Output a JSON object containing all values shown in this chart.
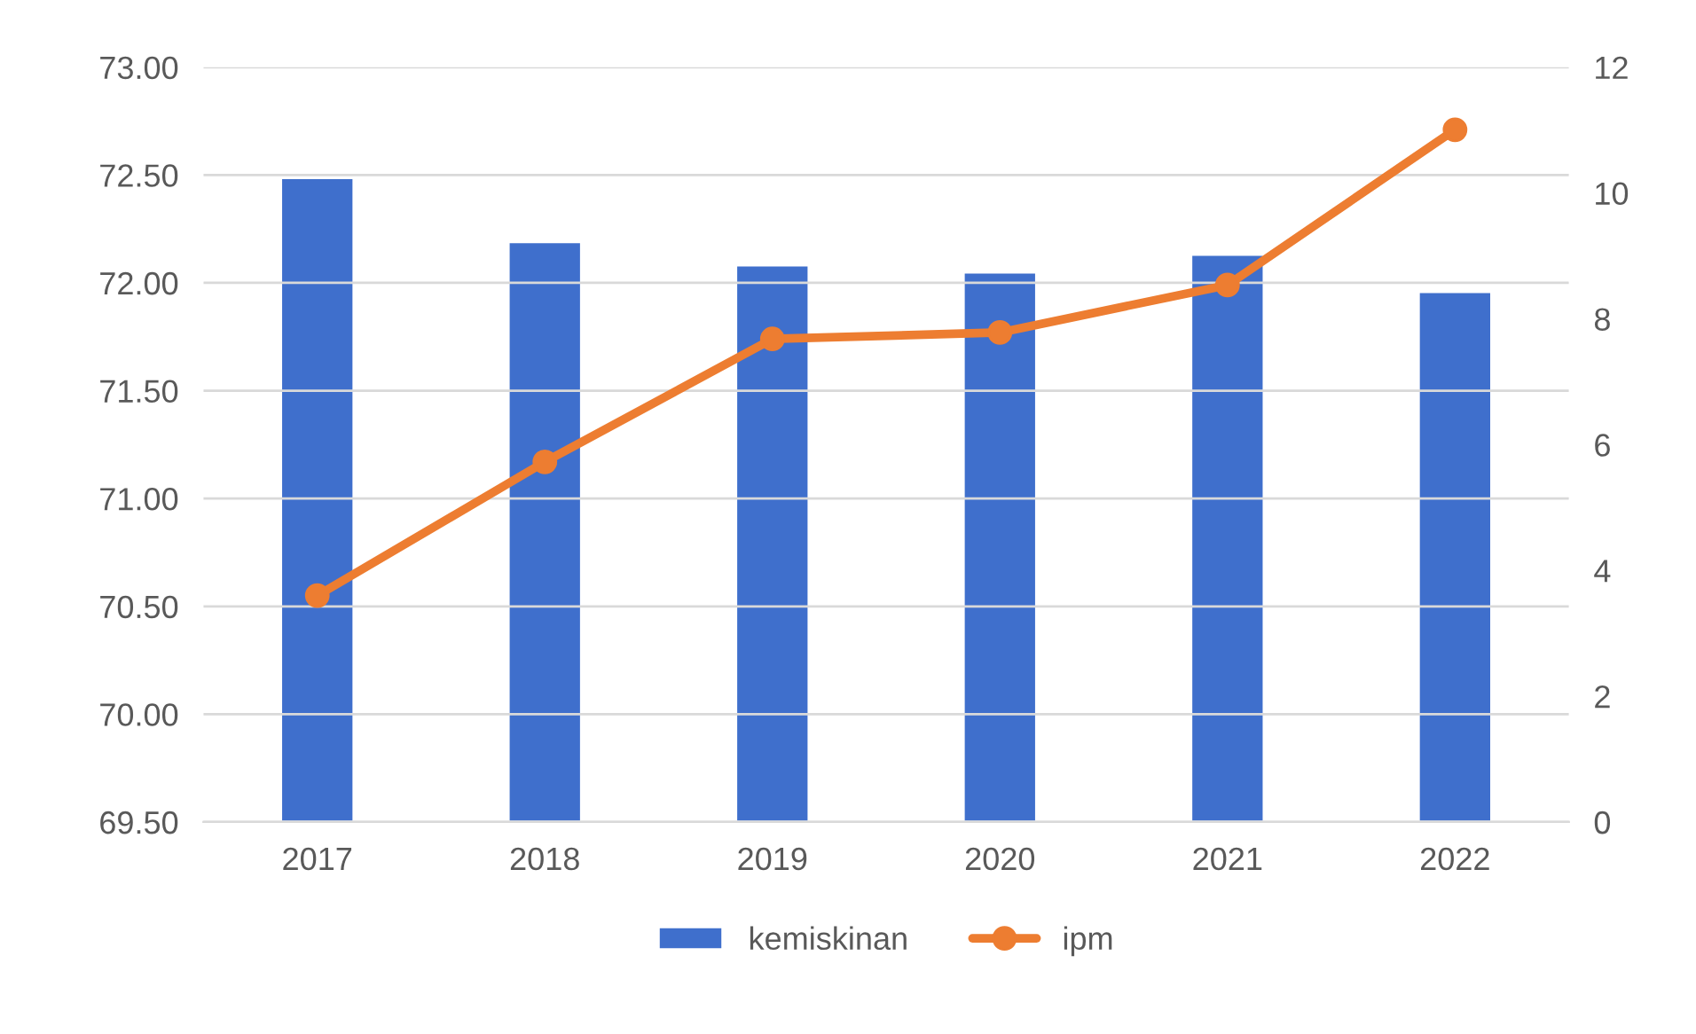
{
  "chart_data": {
    "type": "bar",
    "categories": [
      "2017",
      "2018",
      "2019",
      "2020",
      "2021",
      "2022"
    ],
    "series": [
      {
        "name": "kemiskinan",
        "axis": "y2",
        "color": "#3f6fcc",
        "values": [
          10.24,
          9.22,
          8.85,
          8.74,
          9.02,
          8.43
        ]
      },
      {
        "name": "ipm",
        "type": "line",
        "color": "#ed7d31",
        "marker": "circle",
        "values": [
          70.55,
          71.17,
          71.74,
          71.77,
          71.99,
          72.71
        ]
      }
    ],
    "ylim": [
      69.5,
      73
    ],
    "yticks": [
      {
        "value": 69.5,
        "label": "69.50"
      },
      {
        "value": 70,
        "label": "70.00"
      },
      {
        "value": 70.5,
        "label": "70.50"
      },
      {
        "value": 71,
        "label": "71.00"
      },
      {
        "value": 71.5,
        "label": "71.50"
      },
      {
        "value": 72,
        "label": "72.00"
      },
      {
        "value": 72.5,
        "label": "72.50"
      },
      {
        "value": 73,
        "label": "73.00"
      }
    ],
    "y2lim": [
      0,
      12
    ],
    "y2ticks": [
      0,
      2,
      4,
      6,
      8,
      10,
      12
    ],
    "grid": "y",
    "legend": "bottom"
  }
}
